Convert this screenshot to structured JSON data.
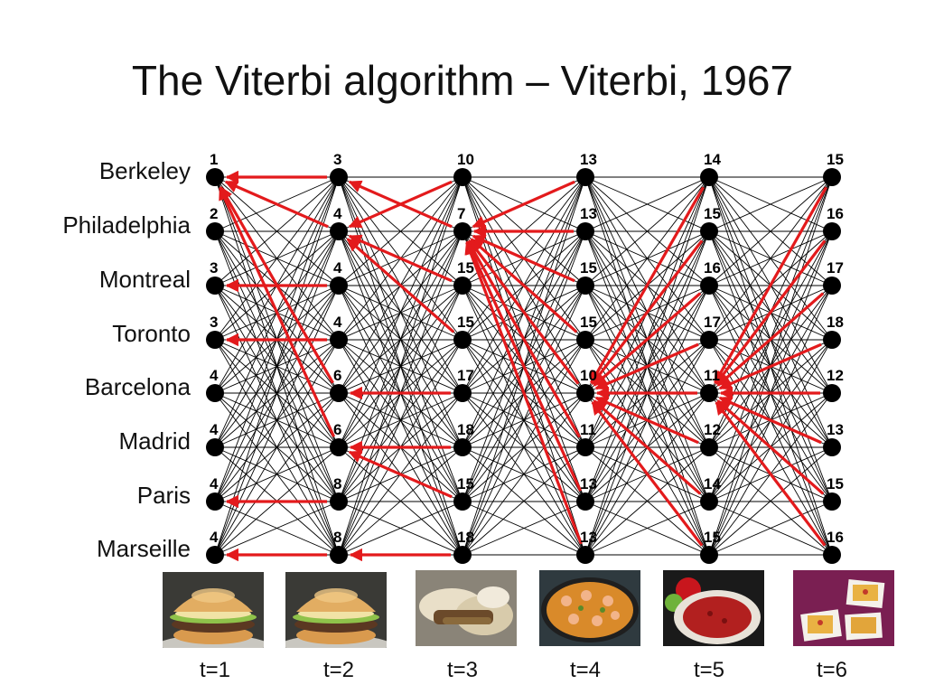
{
  "title": "The Viterbi algorithm – Viterbi, 1967",
  "states": [
    "Berkeley",
    "Philadelphia",
    "Montreal",
    "Toronto",
    "Barcelona",
    "Madrid",
    "Paris",
    "Marseille"
  ],
  "time_labels": [
    "t=1",
    "t=2",
    "t=3",
    "t=4",
    "t=5",
    "t=6"
  ],
  "scores": [
    [
      "1",
      "2",
      "3",
      "3",
      "4",
      "4",
      "4",
      "4"
    ],
    [
      "3",
      "4",
      "4",
      "4",
      "6",
      "6",
      "8",
      "8"
    ],
    [
      "10",
      "7",
      "15",
      "15",
      "17",
      "18",
      "15",
      "18"
    ],
    [
      "13",
      "13",
      "15",
      "15",
      "10",
      "11",
      "13",
      "13"
    ],
    [
      "14",
      "15",
      "16",
      "17",
      "11",
      "12",
      "14",
      "15"
    ],
    [
      "15",
      "16",
      "17",
      "18",
      "12",
      "13",
      "15",
      "16"
    ]
  ],
  "backpointers": [
    null,
    [
      0,
      0,
      2,
      3,
      0,
      0,
      6,
      7
    ],
    [
      1,
      0,
      1,
      1,
      4,
      5,
      5,
      7
    ],
    [
      1,
      1,
      1,
      1,
      1,
      1,
      1,
      1
    ],
    [
      4,
      4,
      4,
      4,
      4,
      4,
      4,
      4
    ],
    [
      4,
      4,
      4,
      4,
      4,
      4,
      4,
      4
    ]
  ],
  "observations": [
    "burger",
    "burger",
    "cheesesteak",
    "paella",
    "gazpacho",
    "tapas"
  ],
  "colors": {
    "backpointer": "#e31a1c",
    "edge": "#000000",
    "node": "#000000"
  }
}
